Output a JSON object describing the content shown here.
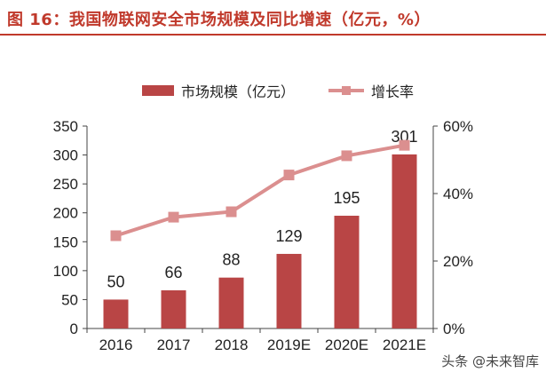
{
  "title": "图 16：我国物联网安全市场规模及同比增速（亿元，%）",
  "watermark": "头条 @未来智库",
  "chart_data": {
    "type": "bar",
    "categories": [
      "2016",
      "2017",
      "2018",
      "2019E",
      "2020E",
      "2021E"
    ],
    "series": [
      {
        "name": "市场规模（亿元）",
        "type": "bar",
        "axis": "left",
        "color": "#b94545",
        "values": [
          50,
          66,
          88,
          129,
          195,
          301
        ],
        "data_labels": [
          "50",
          "66",
          "88",
          "129",
          "195",
          "301"
        ]
      },
      {
        "name": "增长率",
        "type": "line",
        "axis": "right",
        "color": "#db8f8f",
        "values": [
          27.5,
          33,
          34.6,
          45.5,
          51.2,
          54.3
        ]
      }
    ],
    "y_left": {
      "ylim": [
        0,
        350
      ],
      "ticks": [
        "0",
        "50",
        "100",
        "150",
        "200",
        "250",
        "300",
        "350"
      ]
    },
    "y_right": {
      "ylim": [
        0,
        60
      ],
      "ticks": [
        "0%",
        "20%",
        "40%",
        "60%"
      ]
    },
    "legend": "top",
    "grid": false
  }
}
